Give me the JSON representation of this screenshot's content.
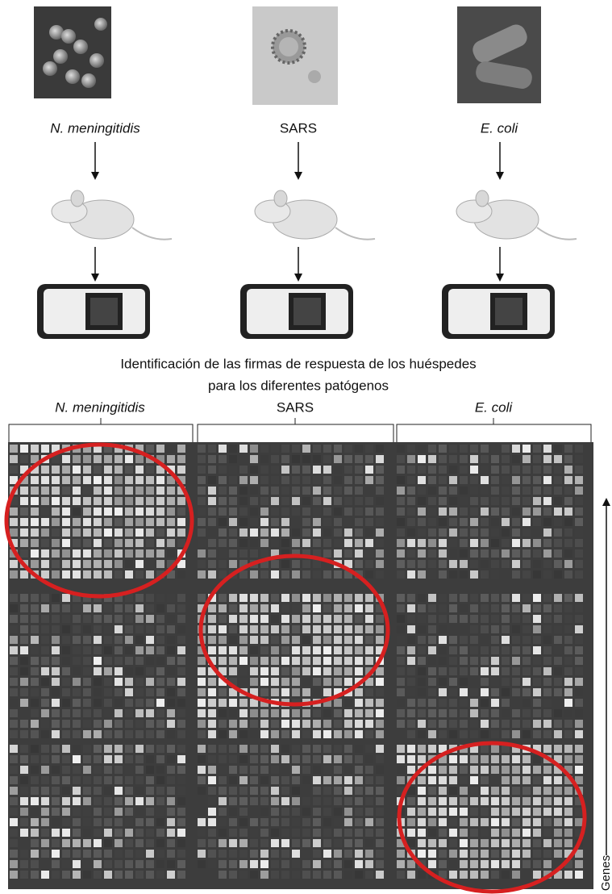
{
  "pathogens": [
    "N. meningitidis",
    "SARS",
    "E. coli"
  ],
  "caption": [
    "Identificación de las firmas de respuesta de los huéspedes",
    "para los diferentes patógenos"
  ],
  "columns": [
    "N. meningitidis",
    "SARS",
    "E. coli"
  ],
  "axis_label": "Genes"
}
